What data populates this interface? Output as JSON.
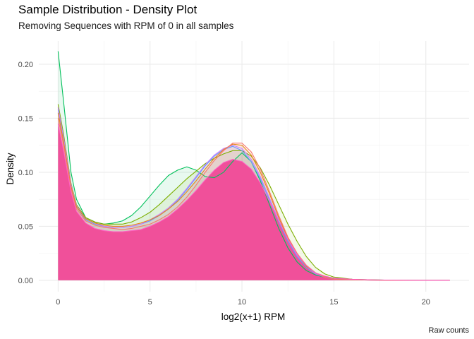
{
  "chart_data": {
    "type": "area",
    "title": "Sample Distribution - Density Plot",
    "subtitle": "Removing Sequences with RPM of 0 in all samples",
    "xlabel": "log2(x+1) RPM",
    "ylabel": "Density",
    "caption": "Raw counts",
    "xlim": [
      -1.05,
      22.35
    ],
    "ylim": [
      -0.0105,
      0.2215
    ],
    "x_ticks": [
      0,
      5,
      10,
      15,
      20
    ],
    "x_tick_labels": [
      "0",
      "5",
      "10",
      "15",
      "20"
    ],
    "y_ticks": [
      0.0,
      0.05,
      0.1,
      0.15,
      0.2
    ],
    "y_tick_labels": [
      "0.00",
      "0.05",
      "0.10",
      "0.15",
      "0.20"
    ],
    "grid": true,
    "legend": "none",
    "fill_color": "#f0509a",
    "series": [
      {
        "color": "#00c05a",
        "x": [
          0,
          0.3,
          0.7,
          1,
          1.5,
          2,
          2.5,
          3,
          3.5,
          4,
          4.5,
          5,
          5.5,
          6,
          6.5,
          7,
          7.5,
          8,
          8.5,
          9,
          9.5,
          10,
          10.5,
          11,
          11.5,
          12,
          12.5,
          13,
          13.5,
          14,
          14.5,
          15,
          16,
          17,
          18,
          19,
          20,
          21.3
        ],
        "y": [
          0.212,
          0.165,
          0.1,
          0.075,
          0.058,
          0.054,
          0.052,
          0.053,
          0.055,
          0.06,
          0.068,
          0.078,
          0.088,
          0.097,
          0.102,
          0.105,
          0.102,
          0.096,
          0.095,
          0.1,
          0.11,
          0.118,
          0.11,
          0.092,
          0.07,
          0.048,
          0.03,
          0.017,
          0.009,
          0.005,
          0.003,
          0.002,
          0.001,
          0.0005,
          0.0002,
          0.0001,
          0,
          0
        ]
      },
      {
        "color": "#7cae00",
        "x": [
          0,
          0.3,
          0.7,
          1,
          1.5,
          2,
          2.5,
          3,
          3.5,
          4,
          4.5,
          5,
          5.5,
          6,
          6.5,
          7,
          7.5,
          8,
          8.5,
          9,
          9.5,
          10,
          10.5,
          11,
          11.5,
          12,
          12.5,
          13,
          13.5,
          14,
          14.5,
          15,
          16,
          17,
          18,
          19,
          20,
          21.3
        ],
        "y": [
          0.163,
          0.135,
          0.09,
          0.07,
          0.058,
          0.054,
          0.052,
          0.052,
          0.052,
          0.054,
          0.058,
          0.063,
          0.07,
          0.078,
          0.086,
          0.094,
          0.101,
          0.108,
          0.113,
          0.117,
          0.12,
          0.12,
          0.115,
          0.104,
          0.088,
          0.07,
          0.052,
          0.036,
          0.022,
          0.012,
          0.006,
          0.003,
          0.001,
          0.0005,
          0.0002,
          0.0001,
          0,
          0
        ]
      },
      {
        "color": "#619cff",
        "x": [
          0,
          0.3,
          0.7,
          1,
          1.5,
          2,
          2.5,
          3,
          3.5,
          4,
          4.5,
          5,
          5.5,
          6,
          6.5,
          7,
          7.5,
          8,
          8.5,
          9,
          9.5,
          10,
          10.5,
          11,
          11.5,
          12,
          12.5,
          13,
          13.5,
          14,
          14.5,
          15,
          16,
          17,
          18,
          19,
          20,
          21.3
        ],
        "y": [
          0.158,
          0.13,
          0.088,
          0.068,
          0.056,
          0.052,
          0.05,
          0.049,
          0.049,
          0.05,
          0.052,
          0.055,
          0.06,
          0.066,
          0.074,
          0.084,
          0.095,
          0.106,
          0.115,
          0.121,
          0.124,
          0.12,
          0.11,
          0.094,
          0.074,
          0.054,
          0.036,
          0.022,
          0.012,
          0.006,
          0.003,
          0.001,
          0.0005,
          0.0002,
          0.0001,
          0,
          0,
          0
        ]
      },
      {
        "color": "#c77cff",
        "x": [
          0,
          0.3,
          0.7,
          1,
          1.5,
          2,
          2.5,
          3,
          3.5,
          4,
          4.5,
          5,
          5.5,
          6,
          6.5,
          7,
          7.5,
          8,
          8.5,
          9,
          9.5,
          10,
          10.5,
          11,
          11.5,
          12,
          12.5,
          13,
          13.5,
          14,
          14.5,
          15,
          16,
          17,
          18,
          19,
          20,
          21.3
        ],
        "y": [
          0.16,
          0.132,
          0.089,
          0.069,
          0.057,
          0.053,
          0.05,
          0.049,
          0.049,
          0.05,
          0.052,
          0.056,
          0.061,
          0.067,
          0.075,
          0.085,
          0.096,
          0.107,
          0.116,
          0.122,
          0.125,
          0.122,
          0.112,
          0.096,
          0.076,
          0.056,
          0.038,
          0.023,
          0.013,
          0.006,
          0.003,
          0.001,
          0.0005,
          0.0002,
          0.0001,
          0,
          0,
          0
        ]
      },
      {
        "color": "#e7861b",
        "x": [
          0,
          0.3,
          0.7,
          1,
          1.5,
          2,
          2.5,
          3,
          3.5,
          4,
          4.5,
          5,
          5.5,
          6,
          6.5,
          7,
          7.5,
          8,
          8.5,
          9,
          9.5,
          10,
          10.5,
          11,
          11.5,
          12,
          12.5,
          13,
          13.5,
          14,
          14.5,
          15,
          16,
          17,
          18,
          19,
          20,
          21.3
        ],
        "y": [
          0.155,
          0.128,
          0.087,
          0.068,
          0.057,
          0.053,
          0.051,
          0.05,
          0.05,
          0.051,
          0.053,
          0.056,
          0.06,
          0.066,
          0.073,
          0.082,
          0.092,
          0.103,
          0.113,
          0.121,
          0.126,
          0.125,
          0.116,
          0.1,
          0.08,
          0.058,
          0.039,
          0.024,
          0.013,
          0.007,
          0.003,
          0.001,
          0.0005,
          0.0002,
          0.0001,
          0,
          0,
          0
        ]
      },
      {
        "color": "#f8766d",
        "x": [
          0,
          0.3,
          0.7,
          1,
          1.5,
          2,
          2.5,
          3,
          3.5,
          4,
          4.5,
          5,
          5.5,
          6,
          6.5,
          7,
          7.5,
          8,
          8.5,
          9,
          9.5,
          10,
          10.5,
          11,
          11.5,
          12,
          12.5,
          13,
          13.5,
          14,
          14.5,
          15,
          16,
          17,
          18,
          19,
          20,
          21.3
        ],
        "y": [
          0.15,
          0.125,
          0.085,
          0.066,
          0.055,
          0.051,
          0.049,
          0.048,
          0.047,
          0.048,
          0.05,
          0.052,
          0.056,
          0.061,
          0.068,
          0.077,
          0.088,
          0.1,
          0.111,
          0.12,
          0.127,
          0.127,
          0.119,
          0.103,
          0.082,
          0.06,
          0.04,
          0.025,
          0.014,
          0.007,
          0.003,
          0.001,
          0.0005,
          0.0002,
          0.0001,
          0,
          0,
          0
        ]
      },
      {
        "color": "#ff61c3",
        "x": [
          0,
          0.3,
          0.7,
          1,
          1.5,
          2,
          2.5,
          3,
          3.5,
          4,
          4.5,
          5,
          5.5,
          6,
          6.5,
          7,
          7.5,
          8,
          8.5,
          9,
          9.5,
          10,
          10.5,
          11,
          11.5,
          12,
          12.5,
          13,
          13.5,
          14,
          14.5,
          15,
          16,
          17,
          18,
          19,
          20,
          21.3
        ],
        "y": [
          0.145,
          0.12,
          0.082,
          0.064,
          0.053,
          0.048,
          0.046,
          0.045,
          0.045,
          0.046,
          0.047,
          0.05,
          0.054,
          0.059,
          0.066,
          0.074,
          0.083,
          0.093,
          0.102,
          0.109,
          0.112,
          0.11,
          0.103,
          0.09,
          0.073,
          0.055,
          0.038,
          0.024,
          0.014,
          0.007,
          0.004,
          0.002,
          0.001,
          0.0005,
          0.0002,
          0.0001,
          0,
          0
        ]
      }
    ]
  }
}
